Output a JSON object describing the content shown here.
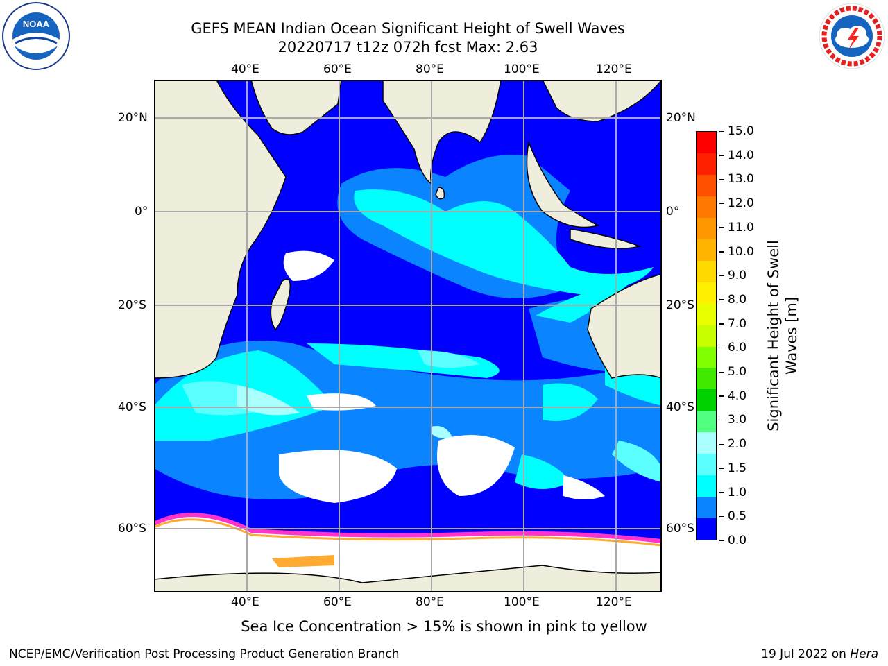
{
  "header": {
    "title_line1": "GEFS MEAN Indian Ocean Significant Height of Swell Waves",
    "title_line2": "20220717 t12z 072h fcst   Max: 2.63"
  },
  "logos": {
    "left": {
      "icon": "noaa-logo",
      "text": "NOAA",
      "ring_text": "NATIONAL OCEANIC AND ATMOSPHERIC ADMINISTRATION · U.S. DEPARTMENT OF COMMERCE"
    },
    "right": {
      "icon": "nws-logo",
      "ring_text": "NATIONAL WEATHER SERVICE"
    }
  },
  "map": {
    "lon_ticks": [
      "40°E",
      "60°E",
      "80°E",
      "100°E",
      "120°E"
    ],
    "lat_ticks": [
      "20°N",
      "0°",
      "20°S",
      "40°S",
      "60°S"
    ],
    "colors": {
      "land": "#efeedc",
      "deep_blue": "#0000ff",
      "mid_blue": "#0a84ff",
      "cyan": "#00ffff",
      "light_cyan": "#5cffff",
      "pale_cyan": "#aaffff",
      "ice": "#ffffff",
      "ice_edge_pink": "#ff33cc",
      "ice_edge_orange": "#ffaa33",
      "grid": "#aaaaaa"
    }
  },
  "colorbar": {
    "label_line1": "Significant Height of Swell",
    "label_line2": "Waves [m]",
    "ticks": [
      "15.0",
      "14.0",
      "13.0",
      "12.0",
      "11.0",
      "10.0",
      "9.0",
      "8.0",
      "7.0",
      "6.0",
      "5.0",
      "4.0",
      "3.0",
      "2.0",
      "1.5",
      "1.0",
      "0.5",
      "0.0"
    ],
    "bands": [
      "#ff0000",
      "#ff2000",
      "#ff5000",
      "#ff7800",
      "#ff9800",
      "#ffb400",
      "#ffd800",
      "#fff000",
      "#e8ff00",
      "#c8ff00",
      "#80ff00",
      "#40e800",
      "#00d200",
      "#50ff80",
      "#aaffff",
      "#5cffff",
      "#00ffff",
      "#0a84ff",
      "#0000ff"
    ]
  },
  "footer": {
    "ice_note": "Sea Ice Concentration > 15% is shown in pink to yellow",
    "credit": "NCEP/EMC/Verification Post Processing Product Generation Branch",
    "date": "19 Jul 2022 on ",
    "machine": "Hera"
  }
}
